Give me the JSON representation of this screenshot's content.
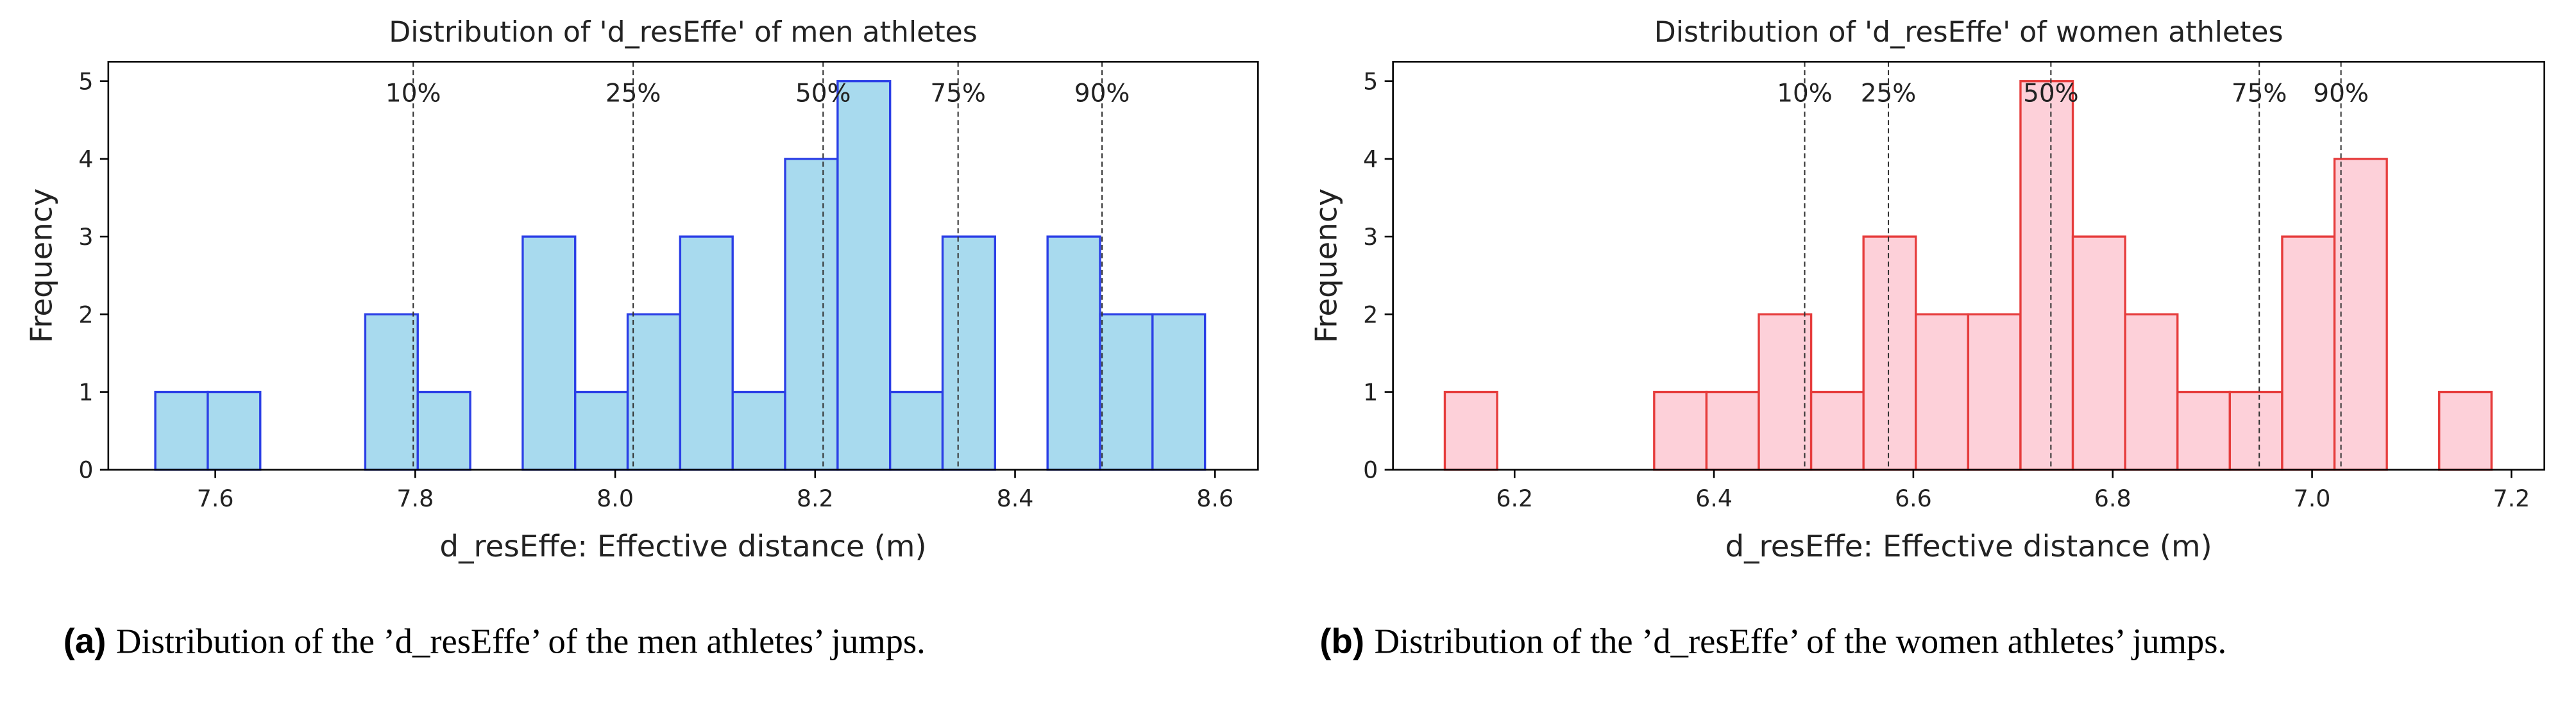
{
  "chart_data": [
    {
      "type": "histogram",
      "title": "Distribution of 'd_resEffe' of men athletes",
      "xlabel": "d_resEffe: Effective distance (m)",
      "ylabel": "Frequency",
      "bins": [
        7.54,
        7.5925,
        7.645,
        7.6975,
        7.75,
        7.8025,
        7.855,
        7.9075,
        7.96,
        8.0125,
        8.065,
        8.1175,
        8.17,
        8.2225,
        8.275,
        8.3275,
        8.38,
        8.4325,
        8.485,
        8.5375,
        8.59
      ],
      "values": [
        1,
        1,
        0,
        0,
        2,
        1,
        0,
        3,
        1,
        2,
        3,
        1,
        4,
        5,
        1,
        3,
        0,
        3,
        2,
        2
      ],
      "color": "#a8daee",
      "edge_color": "#2b3fe6",
      "xlim": [
        7.493,
        8.643
      ],
      "xticks": [
        7.6,
        7.8,
        {
          "value": 8,
          "label": "8.0"
        },
        8.2,
        8.4,
        8.6
      ],
      "ylim": [
        0,
        5.25
      ],
      "yticks": [
        0,
        1,
        2,
        3,
        4,
        5
      ],
      "percentiles": [
        {
          "value": 7.798,
          "label": "10%"
        },
        {
          "value": 8.018,
          "label": "25%"
        },
        {
          "value": 8.208,
          "label": "50%"
        },
        {
          "value": 8.343,
          "label": "75%"
        },
        {
          "value": 8.487,
          "label": "90%"
        }
      ],
      "caption_label": "(a)",
      "caption": "Distribution of the ’d_resEffe’ of the men athletes’ jumps."
    },
    {
      "type": "histogram",
      "title": "Distribution of 'd_resEffe' of women athletes",
      "xlabel": "d_resEffe: Effective distance (m)",
      "ylabel": "Frequency",
      "bins": [
        6.13,
        6.1825,
        6.235,
        6.2875,
        6.34,
        6.3925,
        6.445,
        6.4975,
        6.55,
        6.6025,
        6.655,
        6.7075,
        6.76,
        6.8125,
        6.865,
        6.9175,
        6.97,
        7.0225,
        7.075,
        7.1275,
        7.18
      ],
      "values": [
        1,
        0,
        0,
        0,
        1,
        1,
        2,
        1,
        3,
        2,
        2,
        5,
        3,
        2,
        1,
        1,
        3,
        4,
        0,
        1
      ],
      "color": "#fdd0d9",
      "edge_color": "#e63c3c",
      "xlim": [
        6.078,
        7.233
      ],
      "xticks": [
        6.2,
        6.4,
        6.6,
        6.8,
        {
          "value": 7,
          "label": "7.0"
        },
        7.2
      ],
      "ylim": [
        0,
        5.25
      ],
      "yticks": [
        0,
        1,
        2,
        3,
        4,
        5
      ],
      "percentiles": [
        {
          "value": 6.491,
          "label": "10%"
        },
        {
          "value": 6.575,
          "label": "25%"
        },
        {
          "value": 6.738,
          "label": "50%"
        },
        {
          "value": 6.947,
          "label": "75%"
        },
        {
          "value": 7.029,
          "label": "90%"
        }
      ],
      "caption_label": "(b)",
      "caption": "Distribution of the ’d_resEffe’ of the women athletes’ jumps."
    }
  ]
}
